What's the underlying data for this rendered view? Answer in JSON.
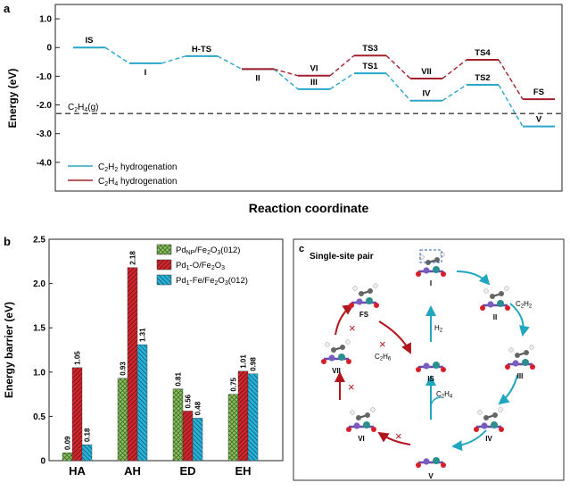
{
  "panels": {
    "a": "a",
    "b": "b",
    "c": "c"
  },
  "chart_data": [
    {
      "panel": "a",
      "type": "line",
      "ylabel": "Energy (eV)",
      "xlabel": "Reaction coordinate",
      "ylim": [
        -5.0,
        1.5
      ],
      "yticks": [
        "1.0",
        "0",
        "-1.0",
        "-2.0",
        "-3.0",
        "-4.0"
      ],
      "ytick_values": [
        1.0,
        0,
        -1.0,
        -2.0,
        -3.0,
        -4.0
      ],
      "grid": false,
      "legend_position": "bottom-left",
      "reference_line": {
        "label": "C2H4(g)",
        "value": -2.3
      },
      "series": [
        {
          "name": "C2H2 hydrogenation",
          "color": "#2aa6c8",
          "states": [
            {
              "label": "IS",
              "x": 0,
              "y": 0.0,
              "label_pos": "above"
            },
            {
              "label": "I",
              "x": 1,
              "y": -0.55,
              "label_pos": "below"
            },
            {
              "label": "H-TS",
              "x": 2,
              "y": -0.3,
              "label_pos": "above"
            },
            {
              "label": "II",
              "x": 3,
              "y": -0.75,
              "label_pos": "below"
            },
            {
              "label": "III",
              "x": 4,
              "y": -1.45,
              "label_pos": "above"
            },
            {
              "label": "TS1",
              "x": 5,
              "y": -0.9,
              "label_pos": "above"
            },
            {
              "label": "IV",
              "x": 6,
              "y": -1.85,
              "label_pos": "above"
            },
            {
              "label": "TS2",
              "x": 7,
              "y": -1.3,
              "label_pos": "above"
            },
            {
              "label": "V",
              "x": 8,
              "y": -2.75,
              "label_pos": "above"
            }
          ]
        },
        {
          "name": "C2H4 hydrogenation",
          "color": "#a3202a",
          "states": [
            {
              "label": "",
              "x": 3,
              "y": -0.75,
              "label_pos": "none"
            },
            {
              "label": "VI",
              "x": 4,
              "y": -0.98,
              "label_pos": "above"
            },
            {
              "label": "TS3",
              "x": 5,
              "y": -0.28,
              "label_pos": "above"
            },
            {
              "label": "VII",
              "x": 6,
              "y": -1.08,
              "label_pos": "above"
            },
            {
              "label": "TS4",
              "x": 7,
              "y": -0.43,
              "label_pos": "above"
            },
            {
              "label": "FS",
              "x": 8,
              "y": -1.8,
              "label_pos": "above"
            }
          ]
        }
      ]
    },
    {
      "panel": "b",
      "type": "bar",
      "ylabel": "Energy barrier (eV)",
      "ylim": [
        0,
        2.5
      ],
      "yticks": [
        "0",
        "0.5",
        "1.0",
        "1.5",
        "2.0",
        "2.5"
      ],
      "ytick_values": [
        0,
        0.5,
        1.0,
        1.5,
        2.0,
        2.5
      ],
      "categories": [
        "HA",
        "AH",
        "ED",
        "EH"
      ],
      "legend_position": "top-right",
      "series": [
        {
          "name": "Pd_NP/Fe2O3(012)",
          "color": "#8cc063",
          "hatch": "crosshatch",
          "values": [
            0.09,
            0.93,
            0.81,
            0.75
          ],
          "labels": [
            "0.09",
            "0.93",
            "0.81",
            "0.75"
          ]
        },
        {
          "name": "Pd1-O/Fe2O3",
          "color": "#d0272f",
          "hatch": "diagonal",
          "values": [
            1.05,
            2.18,
            0.56,
            1.01
          ],
          "labels": [
            "1.05",
            "2.18",
            "0.56",
            "1.01"
          ]
        },
        {
          "name": "Pd1-Fe/Fe2O3(012)",
          "color": "#29b3d8",
          "hatch": "diagonal",
          "values": [
            0.18,
            1.31,
            0.48,
            0.98
          ],
          "labels": [
            "0.18",
            "1.31",
            "0.48",
            "0.98"
          ]
        }
      ]
    }
  ],
  "panel_c": {
    "title": "Single-site pair",
    "states": [
      "I",
      "II",
      "III",
      "IV",
      "V",
      "VI",
      "VII",
      "FS",
      "IS"
    ],
    "reagents": [
      "C2H2",
      "H2",
      "C2H4",
      "C2H6"
    ],
    "blocked_mark": "×",
    "colors": {
      "forward": "#1fa7c0",
      "blocked": "#b3151c"
    }
  }
}
